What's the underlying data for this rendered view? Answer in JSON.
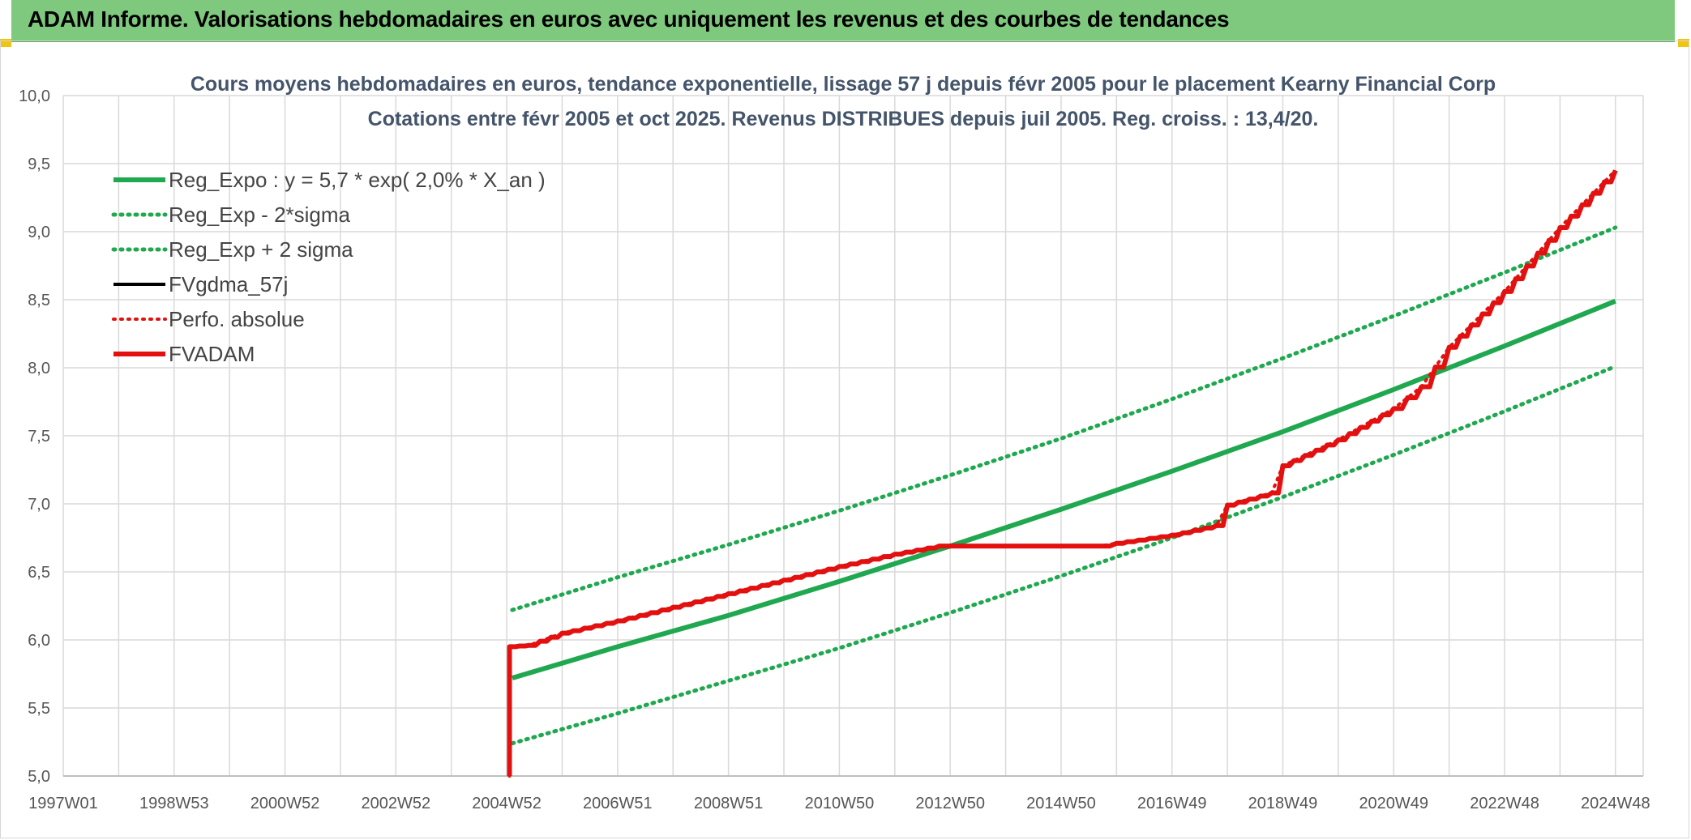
{
  "header": {
    "title": "ADAM Informe. Valorisations hebdomadaires en euros avec uniquement les revenus et des courbes de tendances"
  },
  "colors": {
    "header_bg": "#7fc97f",
    "green": "#1fa84f",
    "red": "#e31010",
    "black": "#000000",
    "grid": "#d9d9d9"
  },
  "chart_data": {
    "type": "line",
    "title": "Cours moyens hebdomadaires en euros, tendance exponentielle, lissage 57 j depuis févr 2005 pour le placement Kearny Financial Corp",
    "subtitle": "Cotations entre févr 2005 et oct 2025. Revenus DISTRIBUES depuis juil 2005. Reg. croiss. : 13,4/20.",
    "ylim": [
      5.0,
      10.0
    ],
    "xlim": [
      1997.0,
      2025.5
    ],
    "grid": true,
    "legend_position": "top-left",
    "y_ticks": [
      "5,0",
      "5,5",
      "6,0",
      "6,5",
      "7,0",
      "7,5",
      "8,0",
      "8,5",
      "9,0",
      "9,5",
      "10,0"
    ],
    "x_ticks": [
      {
        "label": "1997W01",
        "x": 1997.0
      },
      {
        "label": "1998W53",
        "x": 1999.0
      },
      {
        "label": "2000W52",
        "x": 2001.0
      },
      {
        "label": "2002W52",
        "x": 2003.0
      },
      {
        "label": "2004W52",
        "x": 2005.0
      },
      {
        "label": "2006W51",
        "x": 2007.0
      },
      {
        "label": "2008W51",
        "x": 2009.0
      },
      {
        "label": "2010W50",
        "x": 2011.0
      },
      {
        "label": "2012W50",
        "x": 2013.0
      },
      {
        "label": "2014W50",
        "x": 2015.0
      },
      {
        "label": "2016W49",
        "x": 2017.0
      },
      {
        "label": "2018W49",
        "x": 2019.0
      },
      {
        "label": "2020W49",
        "x": 2021.0
      },
      {
        "label": "2022W48",
        "x": 2023.0
      },
      {
        "label": "2024W48",
        "x": 2025.0
      }
    ],
    "series": [
      {
        "name": "Reg_Expo : y = 5,7 * exp( 2,0% *  X_an )",
        "color": "#1fa84f",
        "style": "solid",
        "width": 6,
        "x": [
          2005.1,
          2007,
          2009,
          2011,
          2013,
          2015,
          2017,
          2019,
          2021,
          2023,
          2025.0
        ],
        "y": [
          5.72,
          5.95,
          6.18,
          6.43,
          6.69,
          6.96,
          7.24,
          7.53,
          7.84,
          8.16,
          8.49
        ]
      },
      {
        "name": "Reg_Exp - 2*sigma",
        "color": "#1fa84f",
        "style": "dotted",
        "width": 5,
        "x": [
          2005.1,
          2007,
          2009,
          2011,
          2013,
          2015,
          2017,
          2019,
          2021,
          2023,
          2025.0
        ],
        "y": [
          5.24,
          5.46,
          5.7,
          5.94,
          6.2,
          6.47,
          6.75,
          7.05,
          7.36,
          7.68,
          8.01
        ]
      },
      {
        "name": "Reg_Exp + 2 sigma",
        "color": "#1fa84f",
        "style": "dotted",
        "width": 5,
        "x": [
          2005.1,
          2007,
          2009,
          2011,
          2013,
          2015,
          2017,
          2019,
          2021,
          2023,
          2025.0
        ],
        "y": [
          6.22,
          6.46,
          6.7,
          6.95,
          7.21,
          7.48,
          7.77,
          8.07,
          8.38,
          8.7,
          9.03
        ]
      },
      {
        "name": "FVgdma_57j",
        "color": "#000000",
        "style": "solid",
        "width": 4,
        "x": [
          2005.05,
          2005.05,
          2005.4,
          2006,
          2007,
          2008,
          2009,
          2010,
          2011,
          2012,
          2012.8,
          2014,
          2015.7,
          2016,
          2017,
          2017.8,
          2018,
          2018.8,
          2019,
          2020,
          2021,
          2021.5,
          2022,
          2023,
          2024,
          2025.0
        ],
        "y": [
          5.0,
          5.95,
          5.96,
          6.05,
          6.14,
          6.24,
          6.34,
          6.44,
          6.54,
          6.63,
          6.69,
          6.69,
          6.69,
          6.71,
          6.77,
          6.84,
          6.99,
          7.08,
          7.28,
          7.47,
          7.7,
          7.86,
          8.15,
          8.56,
          9.03,
          9.45
        ]
      },
      {
        "name": "Perfo. absolue",
        "color": "#e31010",
        "style": "dotted",
        "width": 4,
        "x": [
          2005.05,
          2005.05,
          2005.4,
          2006,
          2007,
          2008,
          2009,
          2010,
          2011,
          2012,
          2012.8,
          2014,
          2015.7,
          2016,
          2017,
          2017.8,
          2018,
          2018.8,
          2019,
          2020,
          2021,
          2021.5,
          2022,
          2023,
          2024,
          2025.0
        ],
        "y": [
          5.0,
          5.95,
          5.96,
          6.05,
          6.14,
          6.24,
          6.34,
          6.44,
          6.54,
          6.63,
          6.69,
          6.69,
          6.69,
          6.71,
          6.77,
          6.84,
          6.99,
          7.08,
          7.28,
          7.47,
          7.7,
          7.86,
          8.15,
          8.56,
          9.03,
          9.45
        ]
      },
      {
        "name": "FVADAM",
        "color": "#e31010",
        "style": "solid",
        "width": 6,
        "x": [
          2005.05,
          2005.05,
          2005.4,
          2006,
          2007,
          2008,
          2009,
          2010,
          2011,
          2012,
          2012.8,
          2014,
          2015.7,
          2016,
          2017,
          2017.8,
          2018,
          2018.8,
          2019,
          2020,
          2021,
          2021.5,
          2022,
          2023,
          2024,
          2025.0
        ],
        "y": [
          5.0,
          5.95,
          5.96,
          6.05,
          6.14,
          6.24,
          6.34,
          6.44,
          6.54,
          6.63,
          6.69,
          6.69,
          6.69,
          6.71,
          6.77,
          6.84,
          6.99,
          7.08,
          7.28,
          7.47,
          7.7,
          7.86,
          8.15,
          8.56,
          9.03,
          9.45
        ]
      }
    ]
  }
}
